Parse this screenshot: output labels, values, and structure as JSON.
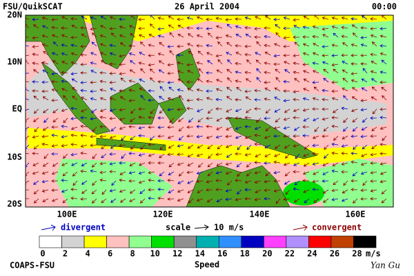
{
  "header": {
    "left": "FSU/QuikSCAT",
    "center": "26 April 2004",
    "right": "00:00"
  },
  "map": {
    "lat_labels": [
      "20N",
      "10N",
      "EQ",
      "10S",
      "20S"
    ],
    "lon_labels": [
      "100E",
      "120E",
      "140E",
      "160E"
    ]
  },
  "legend": {
    "divergent": "divergent",
    "scale": "scale",
    "scale_value": "10 m/s",
    "convergent": "convergent"
  },
  "colorbar": {
    "ticks": [
      0,
      2,
      4,
      6,
      8,
      10,
      12,
      14,
      16,
      18,
      20,
      22,
      24,
      26,
      28
    ],
    "colors": [
      "#ffffff",
      "#d3d3d3",
      "#ffff00",
      "#ffc0c0",
      "#90ff90",
      "#00e000",
      "#909090",
      "#00b0b0",
      "#3090ff",
      "#0000c0",
      "#ff40ff",
      "#b090ff",
      "#ff0000",
      "#c04000",
      "#000000"
    ],
    "unit": "m/s",
    "label": "Speed"
  },
  "footer": {
    "left": "COAPS-FSU",
    "right": "Yan Gu"
  }
}
